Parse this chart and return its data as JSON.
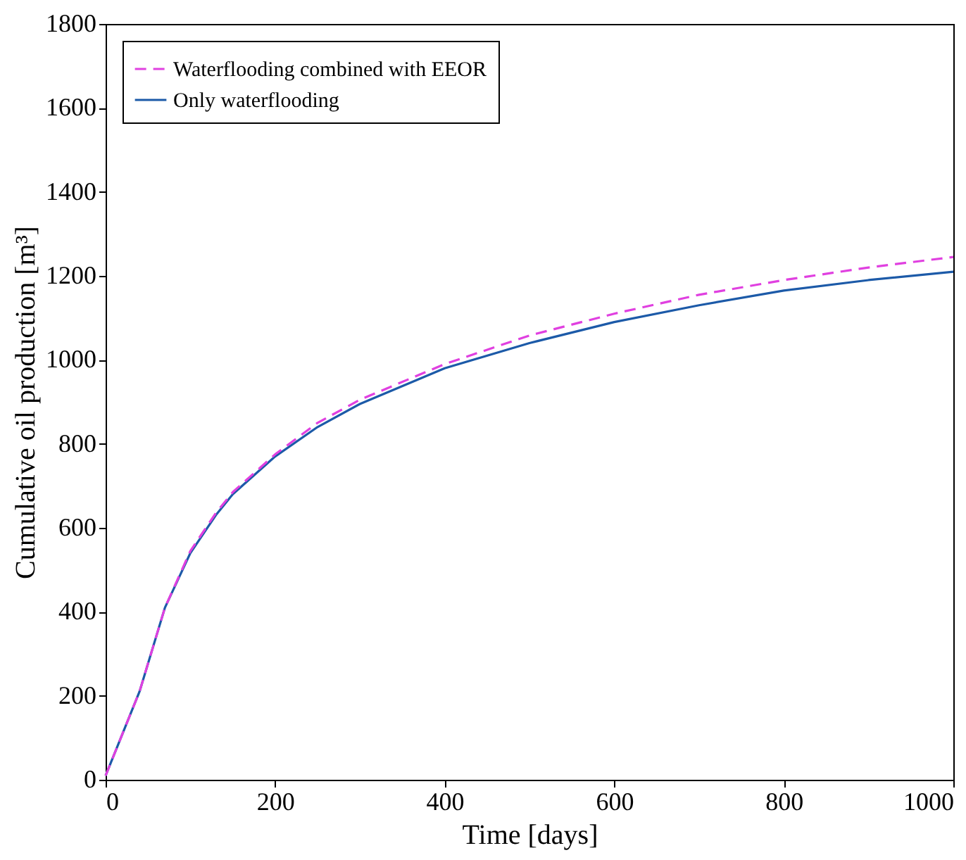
{
  "chart_data": {
    "type": "line",
    "xlabel": "Time [days]",
    "ylabel": "Cumulative oil production [m³]",
    "xlim": [
      0,
      1000
    ],
    "xticks": [
      0,
      200,
      400,
      600,
      800,
      1000
    ],
    "ylim": [
      0,
      1800
    ],
    "yticks": [
      0,
      200,
      400,
      600,
      800,
      1000,
      1200,
      1400,
      1600,
      1800
    ],
    "grid": false,
    "legend": "top left",
    "x": [
      0,
      20,
      40,
      70,
      100,
      130,
      150,
      200,
      250,
      300,
      400,
      500,
      600,
      700,
      800,
      900,
      1000
    ],
    "series": [
      {
        "name": "Waterflooding combined with EEOR",
        "color": "#e040e0",
        "line_style": "dashed",
        "values": [
          10,
          110,
          210,
          410,
          545,
          635,
          685,
          775,
          850,
          905,
          990,
          1058,
          1110,
          1155,
          1190,
          1220,
          1245
        ]
      },
      {
        "name": "Only waterflooding",
        "color": "#1c5aa8",
        "line_style": "solid",
        "values": [
          10,
          110,
          210,
          410,
          540,
          630,
          680,
          770,
          840,
          895,
          980,
          1040,
          1090,
          1130,
          1165,
          1190,
          1210
        ]
      }
    ]
  }
}
